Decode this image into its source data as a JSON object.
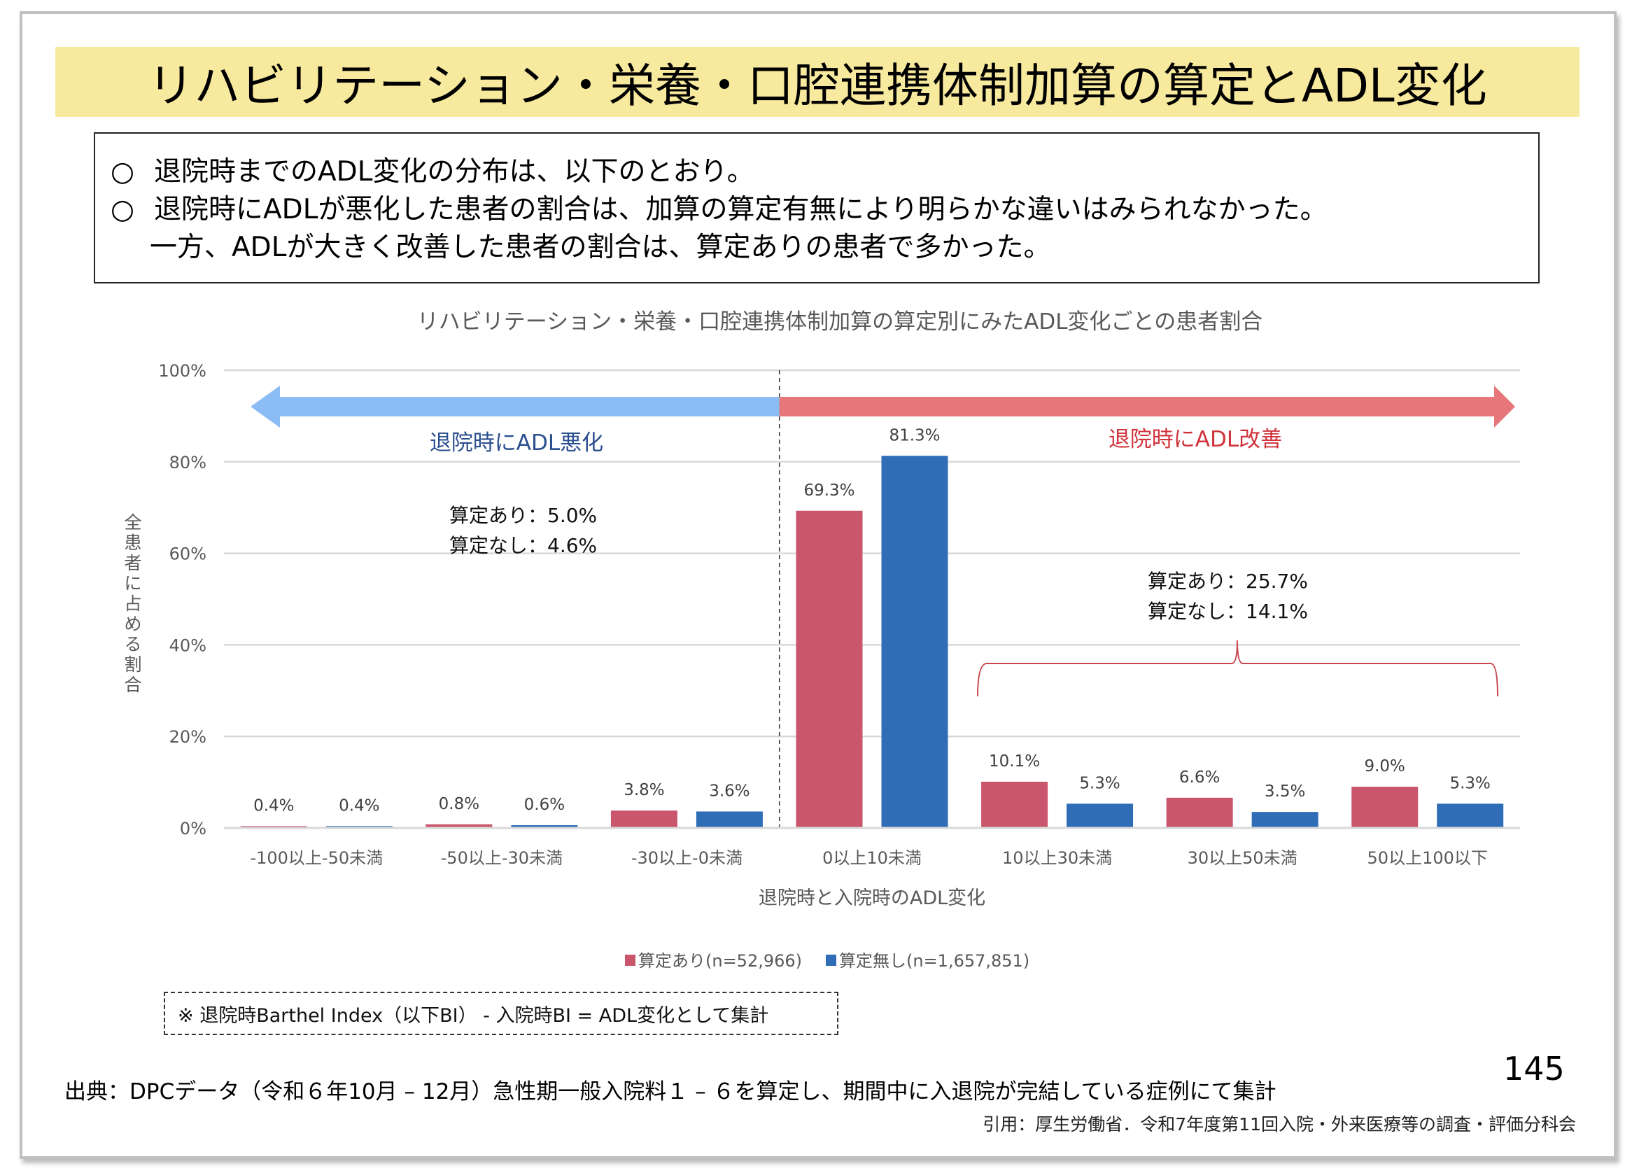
{
  "slide": {
    "title": "リハビリテーション・栄養・口腔連携体制加算の算定とADL変化",
    "summary": [
      {
        "bullet": "○",
        "text": "退院時までのADL変化の分布は、以下のとおり。"
      },
      {
        "bullet": "○",
        "text": "退院時にADLが悪化した患者の割合は、加算の算定有無により明らかな違いはみられなかった。"
      },
      {
        "bullet": "",
        "text": "一方、ADLが大きく改善した患者の割合は、算定ありの患者で多かった。"
      }
    ],
    "note": "※ 退院時Barthel Index（以下BI） - 入院時BI = ADL変化として集計",
    "source": "出典：DPCデータ（令和６年10月 – 12月）急性期一般入院料１ – ６を算定し、期間中に入退院が完結している症例にて集計",
    "citation": "引用：厚生労働省．令和7年度第11回入院・外来医療等の調査・評価分科会",
    "page_number": "145"
  },
  "chart_data": {
    "type": "bar",
    "title": "リハビリテーション・栄養・口腔連携体制加算の算定別にみたADL変化ごとの患者割合",
    "xlabel": "退院時と入院時のADL変化",
    "ylabel": "全患者に占める割合",
    "ylim": [
      0,
      100
    ],
    "yticks": [
      "0%",
      "20%",
      "40%",
      "60%",
      "80%",
      "100%"
    ],
    "ytick_values": [
      0,
      20,
      40,
      60,
      80,
      100
    ],
    "grid": true,
    "legend_position": "bottom",
    "categories": [
      "-100以上-50未満",
      "-50以上-30未満",
      "-30以上-0未満",
      "0以上10未満",
      "10以上30未満",
      "30以上50未満",
      "50以上100以下"
    ],
    "series": [
      {
        "name": "算定あり(n=52,966)",
        "color": "#c9566c",
        "values": [
          0.4,
          0.8,
          3.8,
          69.3,
          10.1,
          6.6,
          9.0
        ],
        "labels": [
          "0.4%",
          "0.8%",
          "3.8%",
          "69.3%",
          "10.1%",
          "6.6%",
          "9.0%"
        ]
      },
      {
        "name": "算定無し(n=1,657,851)",
        "color": "#2f6db7",
        "values": [
          0.4,
          0.6,
          3.6,
          81.3,
          5.3,
          3.5,
          5.3
        ],
        "labels": [
          "0.4%",
          "0.6%",
          "3.6%",
          "81.3%",
          "5.3%",
          "3.5%",
          "5.3%"
        ]
      }
    ],
    "annotations": {
      "worsen_arrow": {
        "label": "退院時にADL悪化",
        "color": "#8bbcf5",
        "text_color": "#2b4f8f"
      },
      "improve_arrow": {
        "label": "退院時にADL改善",
        "color": "#e8777b",
        "text_color": "#d0333c"
      },
      "worsen_summary": [
        "算定あり：5.0%",
        "算定なし：4.6%"
      ],
      "improve_summary": [
        "算定あり：25.7%",
        "算定なし：14.1%"
      ],
      "brace_color": "#c9464f",
      "divider_after_category": 2
    }
  }
}
